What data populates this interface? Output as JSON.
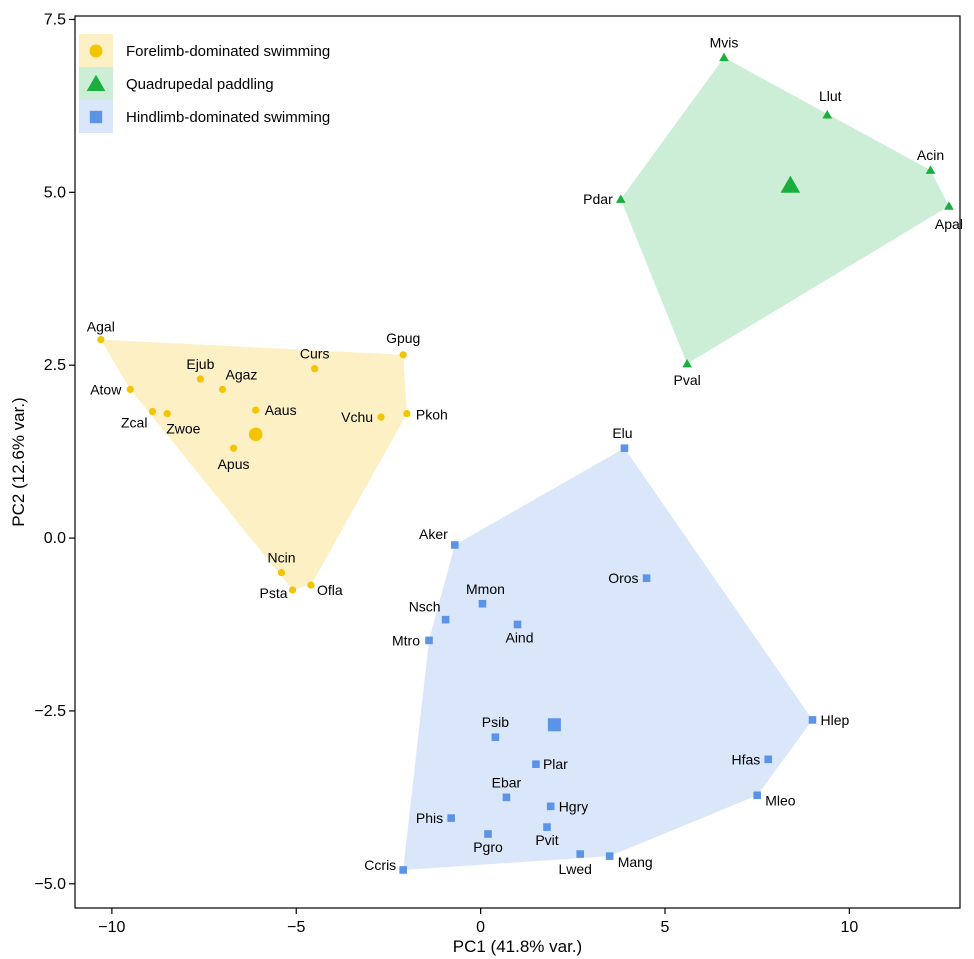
{
  "chart_data": {
    "type": "scatter",
    "title": "",
    "xlabel": "PC1 (41.8% var.)",
    "ylabel": "PC2 (12.6% var.)",
    "xlim": [
      -11.0,
      13.0
    ],
    "ylim": [
      -5.35,
      7.55
    ],
    "xticks": [
      -10,
      -5,
      0,
      5,
      10
    ],
    "xtick_labels": [
      "−10",
      "−5",
      "0",
      "5",
      "10"
    ],
    "yticks": [
      -5.0,
      -2.5,
      0.0,
      2.5,
      5.0,
      7.5
    ],
    "ytick_labels": [
      "−5.0",
      "−2.5",
      "0.0",
      "2.5",
      "5.0",
      "7.5"
    ],
    "grid": false,
    "legend_position": "top-left",
    "hulls": true,
    "series": [
      {
        "name": "Forelimb-dominated swimming",
        "color": "#F5C400",
        "fill": "#FCF0C4",
        "marker": "circle",
        "centroid": [
          -6.1,
          1.5
        ],
        "points": [
          {
            "label": "Agal",
            "x": -10.3,
            "y": 2.87
          },
          {
            "label": "Atow",
            "x": -9.5,
            "y": 2.15
          },
          {
            "label": "Zcal",
            "x": -8.9,
            "y": 1.83
          },
          {
            "label": "Zwoe",
            "x": -8.5,
            "y": 1.8
          },
          {
            "label": "Ejub",
            "x": -7.6,
            "y": 2.3
          },
          {
            "label": "Agaz",
            "x": -7.0,
            "y": 2.15
          },
          {
            "label": "Aaus",
            "x": -6.1,
            "y": 1.85
          },
          {
            "label": "Apus",
            "x": -6.7,
            "y": 1.3
          },
          {
            "label": "Curs",
            "x": -4.5,
            "y": 2.45
          },
          {
            "label": "Gpug",
            "x": -2.1,
            "y": 2.65
          },
          {
            "label": "Vchu",
            "x": -2.7,
            "y": 1.75
          },
          {
            "label": "Pkoh",
            "x": -2.0,
            "y": 1.8
          },
          {
            "label": "Ncin",
            "x": -5.4,
            "y": -0.5
          },
          {
            "label": "Psta",
            "x": -5.1,
            "y": -0.75
          },
          {
            "label": "Ofla",
            "x": -4.6,
            "y": -0.68
          }
        ]
      },
      {
        "name": "Quadrupedal paddling",
        "color": "#1AAF3C",
        "fill": "#CCEED6",
        "marker": "triangle",
        "centroid": [
          8.4,
          5.1
        ],
        "points": [
          {
            "label": "Mvis",
            "x": 6.6,
            "y": 6.95
          },
          {
            "label": "Llut",
            "x": 9.4,
            "y": 6.12
          },
          {
            "label": "Acin",
            "x": 12.2,
            "y": 5.32
          },
          {
            "label": "Apal",
            "x": 12.7,
            "y": 4.8
          },
          {
            "label": "Pdar",
            "x": 3.8,
            "y": 4.9
          },
          {
            "label": "Pval",
            "x": 5.6,
            "y": 2.52
          }
        ]
      },
      {
        "name": "Hindlimb-dominated swimming",
        "color": "#5B94E6",
        "fill": "#DAE6FA",
        "marker": "square",
        "centroid": [
          2.0,
          -2.7
        ],
        "points": [
          {
            "label": "Elu",
            "x": 3.9,
            "y": 1.3
          },
          {
            "label": "Aker",
            "x": -0.7,
            "y": -0.1
          },
          {
            "label": "Oros",
            "x": 4.5,
            "y": -0.58
          },
          {
            "label": "Mmon",
            "x": 0.05,
            "y": -0.95
          },
          {
            "label": "Nsch",
            "x": -0.95,
            "y": -1.18
          },
          {
            "label": "Aind",
            "x": 1.0,
            "y": -1.25
          },
          {
            "label": "Mtro",
            "x": -1.4,
            "y": -1.48
          },
          {
            "label": "Hlep",
            "x": 9.0,
            "y": -2.63
          },
          {
            "label": "Psib",
            "x": 0.4,
            "y": -2.88
          },
          {
            "label": "Hfas",
            "x": 7.8,
            "y": -3.2
          },
          {
            "label": "Plar",
            "x": 1.5,
            "y": -3.27
          },
          {
            "label": "Ebar",
            "x": 0.7,
            "y": -3.75
          },
          {
            "label": "Mleo",
            "x": 7.5,
            "y": -3.72
          },
          {
            "label": "Hgry",
            "x": 1.9,
            "y": -3.88
          },
          {
            "label": "Phis",
            "x": -0.8,
            "y": -4.05
          },
          {
            "label": "Pvit",
            "x": 1.8,
            "y": -4.18
          },
          {
            "label": "Pgro",
            "x": 0.2,
            "y": -4.28
          },
          {
            "label": "Lwed",
            "x": 2.7,
            "y": -4.57
          },
          {
            "label": "Mang",
            "x": 3.5,
            "y": -4.6
          },
          {
            "label": "Ccris",
            "x": -2.1,
            "y": -4.8
          }
        ]
      }
    ]
  }
}
